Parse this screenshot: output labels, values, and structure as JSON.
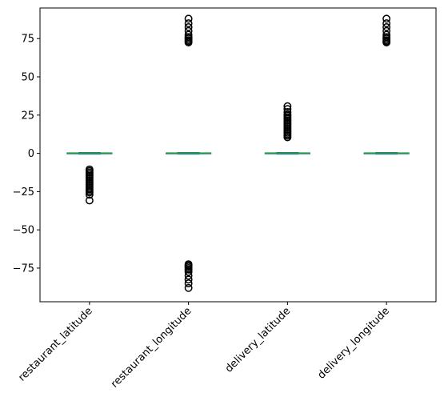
{
  "chart_data": {
    "type": "box",
    "title": "",
    "xlabel": "",
    "ylabel": "",
    "ylim": [
      -97,
      95
    ],
    "yticks": [
      -75,
      -50,
      -25,
      0,
      25,
      50,
      75
    ],
    "ytick_labels": [
      "−75",
      "−50",
      "−25",
      "0",
      "25",
      "50",
      "75"
    ],
    "grid": false,
    "categories": [
      "restaurant_latitude",
      "restaurant_longitude",
      "delivery_latitude",
      "delivery_longitude"
    ],
    "series": [
      {
        "box": {
          "q1": -0.3,
          "median": 0,
          "q3": 0.3,
          "whislo": -0.5,
          "whishi": 0.5
        },
        "fliers": [
          -10.5,
          -11.5,
          -12.5,
          -13.5,
          -14.5,
          -15.5,
          -16.5,
          -17.5,
          -18.5,
          -19.5,
          -20.5,
          -21.5,
          -22.5,
          -23.5,
          -24.5,
          -25.5,
          -27,
          -30.8
        ]
      },
      {
        "box": {
          "q1": -0.3,
          "median": 0,
          "q3": 0.3,
          "whislo": -0.5,
          "whishi": 0.5
        },
        "fliers": [
          72.5,
          73.2,
          74,
          75,
          76,
          77.5,
          80,
          82.5,
          85,
          88,
          -72.5,
          -73.2,
          -74,
          -75,
          -76,
          -77.5,
          -80,
          -82.5,
          -85,
          -88
        ]
      },
      {
        "box": {
          "q1": -0.3,
          "median": 0,
          "q3": 0.3,
          "whislo": -0.5,
          "whishi": 0.5
        },
        "fliers": [
          10.5,
          11.5,
          12.5,
          13.5,
          14.5,
          15.5,
          16.5,
          17.5,
          18.5,
          19.5,
          20.5,
          21.5,
          22.5,
          23.5,
          24.5,
          25.5,
          27,
          29,
          30.8
        ]
      },
      {
        "box": {
          "q1": -0.3,
          "median": 0,
          "q3": 0.3,
          "whislo": -0.5,
          "whishi": 0.5
        },
        "fliers": [
          72.5,
          73.2,
          74,
          75,
          76,
          77.5,
          80,
          82.5,
          85,
          88
        ]
      }
    ]
  }
}
